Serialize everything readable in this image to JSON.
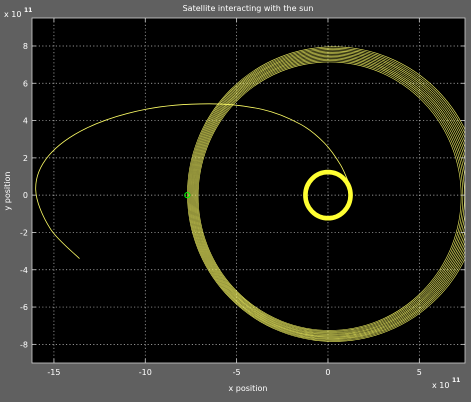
{
  "chart_data": {
    "type": "line",
    "title": "Satellite interacting with the sun",
    "xlabel": "x position",
    "ylabel": "y position",
    "x_exponent": "x 10",
    "x_exponent_power": "11",
    "y_exponent": "x 10",
    "y_exponent_power": "11",
    "xlim": [
      -16.2,
      7.5
    ],
    "ylim": [
      -9,
      9.5
    ],
    "x_ticks": [
      -15,
      -10,
      -5,
      0,
      5
    ],
    "y_ticks": [
      -8,
      -6,
      -4,
      -2,
      0,
      2,
      4,
      6,
      8
    ],
    "x_tick_labels": [
      "-15",
      "-10",
      "-5",
      "0",
      "5"
    ],
    "y_tick_labels": [
      "-8",
      "-6",
      "-4",
      "-2",
      "0",
      "2",
      "4",
      "6",
      "8"
    ],
    "grid": true,
    "background": "#000000",
    "figure_background": "#606060",
    "line_color": "#ffff66",
    "series": [
      {
        "kind": "approach_trajectory",
        "color": "#ffff66",
        "points": [
          [
            -13.6,
            -3.4
          ],
          [
            -15.2,
            -1.8
          ],
          [
            -16.0,
            0.3
          ],
          [
            -15.3,
            2.1
          ],
          [
            -13.2,
            3.6
          ],
          [
            -10.0,
            4.6
          ],
          [
            -6.5,
            4.9
          ],
          [
            -3.6,
            4.6
          ],
          [
            -1.5,
            3.8
          ],
          [
            -0.2,
            2.8
          ],
          [
            0.7,
            1.6
          ],
          [
            1.2,
            0.5
          ]
        ]
      },
      {
        "kind": "outer_orbit_bundle",
        "color": "#ffff66",
        "center": [
          0.2,
          0.0
        ],
        "rx_range": [
          7.2,
          8.0
        ],
        "ry_range": [
          7.2,
          7.9
        ],
        "loops": 12
      },
      {
        "kind": "inner_orbit",
        "color": "#ffff33",
        "center": [
          0.0,
          0.0
        ],
        "rx": 1.25,
        "ry": 1.25,
        "loops": 8
      }
    ],
    "marker": {
      "kind": "start_point",
      "x": -7.7,
      "y": 0.0,
      "color": "#00ff00"
    }
  }
}
